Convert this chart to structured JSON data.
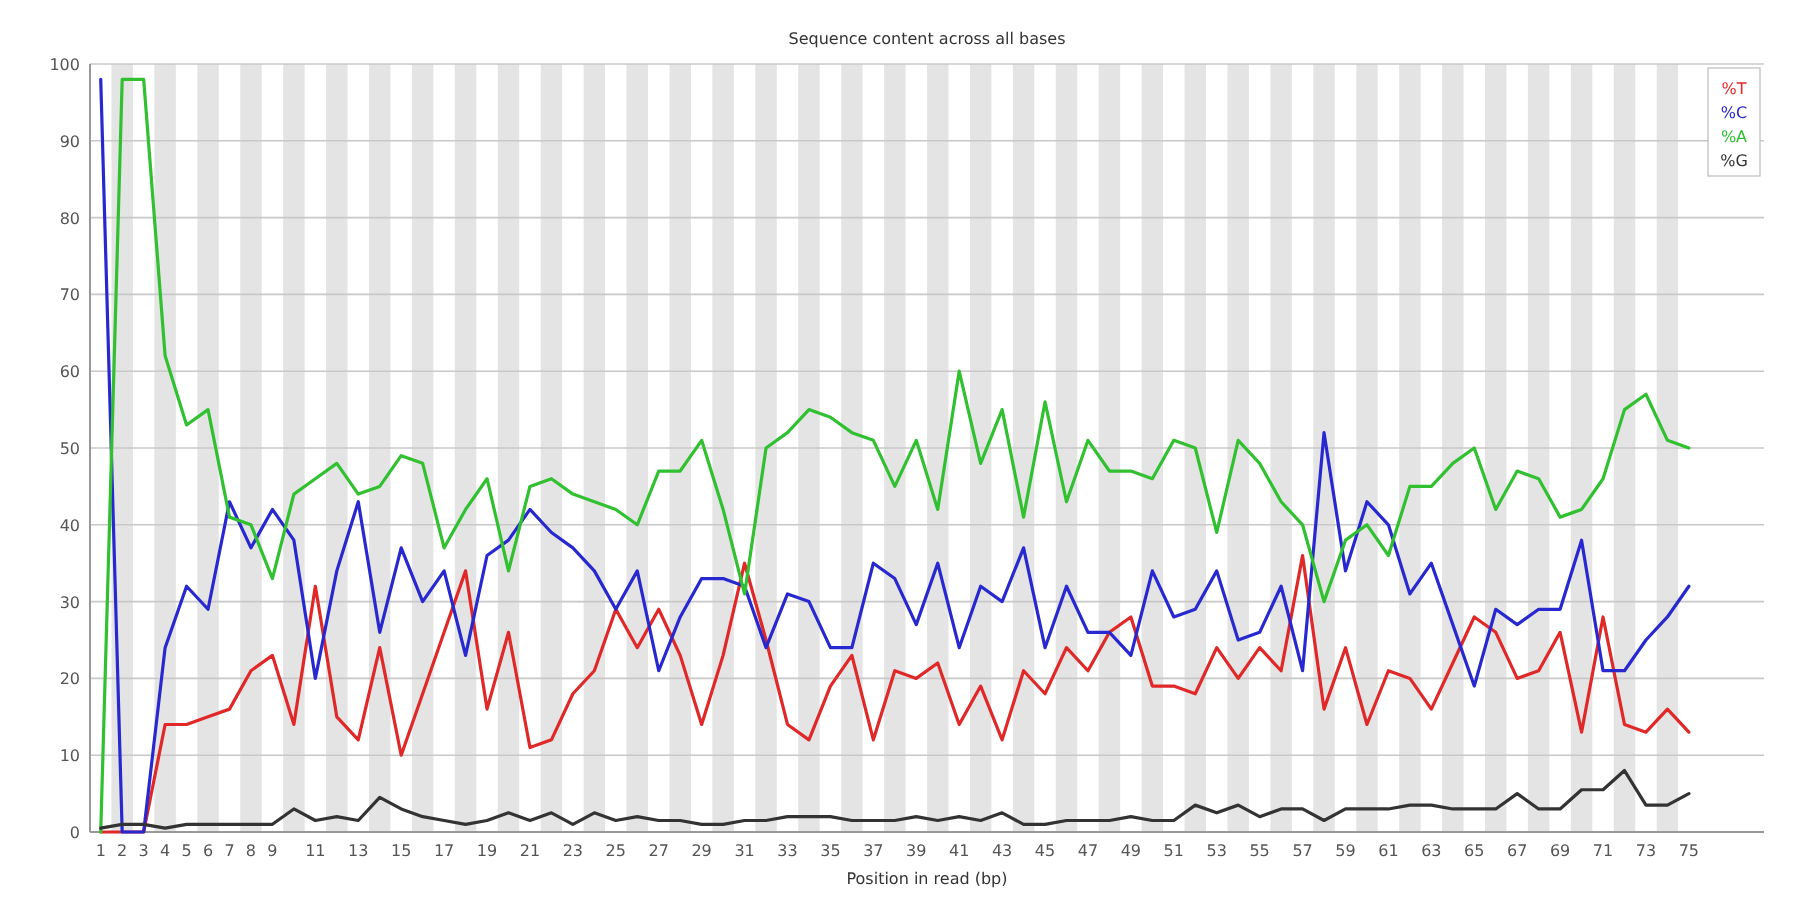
{
  "chart_data": {
    "type": "line",
    "title": "Sequence content across all bases",
    "xlabel": "Position in read (bp)",
    "x": [
      1,
      2,
      3,
      4,
      5,
      6,
      7,
      8,
      9,
      10,
      11,
      12,
      13,
      14,
      15,
      16,
      17,
      18,
      19,
      20,
      21,
      22,
      23,
      24,
      25,
      26,
      27,
      28,
      29,
      30,
      31,
      32,
      33,
      34,
      35,
      36,
      37,
      38,
      39,
      40,
      41,
      42,
      43,
      44,
      45,
      46,
      47,
      48,
      49,
      50,
      51,
      52,
      53,
      54,
      55,
      56,
      57,
      58,
      59,
      60,
      61,
      62,
      63,
      64,
      65,
      66,
      67,
      68,
      69,
      70,
      71,
      72,
      73,
      74,
      75
    ],
    "xlim": [
      0.5,
      78.5
    ],
    "xticks": [
      1,
      2,
      3,
      4,
      5,
      6,
      7,
      8,
      9,
      11,
      13,
      15,
      17,
      19,
      21,
      23,
      25,
      27,
      29,
      31,
      33,
      35,
      37,
      39,
      41,
      43,
      45,
      47,
      49,
      51,
      53,
      55,
      57,
      59,
      61,
      63,
      65,
      67,
      69,
      71,
      73,
      75
    ],
    "ylim": [
      0,
      100
    ],
    "yticks": [
      0,
      10,
      20,
      30,
      40,
      50,
      60,
      70,
      80,
      90,
      100
    ],
    "grid": "y",
    "legend": "top right",
    "bands": [
      {
        "axis": "x",
        "from": 1.5,
        "to": 2.5,
        "color": "#e4e4e4"
      },
      {
        "axis": "x",
        "from": 3.5,
        "to": 4.5,
        "color": "#e4e4e4"
      },
      {
        "axis": "x",
        "from": 5.5,
        "to": 6.5,
        "color": "#e4e4e4"
      },
      {
        "axis": "x",
        "from": 7.5,
        "to": 8.5,
        "color": "#e4e4e4"
      },
      {
        "axis": "x",
        "from": 9.5,
        "to": 10.5,
        "color": "#e4e4e4"
      },
      {
        "axis": "x",
        "from": 11.5,
        "to": 12.5,
        "color": "#e4e4e4"
      },
      {
        "axis": "x",
        "from": 13.5,
        "to": 14.5,
        "color": "#e4e4e4"
      },
      {
        "axis": "x",
        "from": 15.5,
        "to": 16.5,
        "color": "#e4e4e4"
      },
      {
        "axis": "x",
        "from": 17.5,
        "to": 18.5,
        "color": "#e4e4e4"
      },
      {
        "axis": "x",
        "from": 19.5,
        "to": 20.5,
        "color": "#e4e4e4"
      },
      {
        "axis": "x",
        "from": 21.5,
        "to": 22.5,
        "color": "#e4e4e4"
      },
      {
        "axis": "x",
        "from": 23.5,
        "to": 24.5,
        "color": "#e4e4e4"
      },
      {
        "axis": "x",
        "from": 25.5,
        "to": 26.5,
        "color": "#e4e4e4"
      },
      {
        "axis": "x",
        "from": 27.5,
        "to": 28.5,
        "color": "#e4e4e4"
      },
      {
        "axis": "x",
        "from": 29.5,
        "to": 30.5,
        "color": "#e4e4e4"
      },
      {
        "axis": "x",
        "from": 31.5,
        "to": 32.5,
        "color": "#e4e4e4"
      },
      {
        "axis": "x",
        "from": 33.5,
        "to": 34.5,
        "color": "#e4e4e4"
      },
      {
        "axis": "x",
        "from": 35.5,
        "to": 36.5,
        "color": "#e4e4e4"
      },
      {
        "axis": "x",
        "from": 37.5,
        "to": 38.5,
        "color": "#e4e4e4"
      },
      {
        "axis": "x",
        "from": 39.5,
        "to": 40.5,
        "color": "#e4e4e4"
      },
      {
        "axis": "x",
        "from": 41.5,
        "to": 42.5,
        "color": "#e4e4e4"
      },
      {
        "axis": "x",
        "from": 43.5,
        "to": 44.5,
        "color": "#e4e4e4"
      },
      {
        "axis": "x",
        "from": 45.5,
        "to": 46.5,
        "color": "#e4e4e4"
      },
      {
        "axis": "x",
        "from": 47.5,
        "to": 48.5,
        "color": "#e4e4e4"
      },
      {
        "axis": "x",
        "from": 49.5,
        "to": 50.5,
        "color": "#e4e4e4"
      },
      {
        "axis": "x",
        "from": 51.5,
        "to": 52.5,
        "color": "#e4e4e4"
      },
      {
        "axis": "x",
        "from": 53.5,
        "to": 54.5,
        "color": "#e4e4e4"
      },
      {
        "axis": "x",
        "from": 55.5,
        "to": 56.5,
        "color": "#e4e4e4"
      },
      {
        "axis": "x",
        "from": 57.5,
        "to": 58.5,
        "color": "#e4e4e4"
      },
      {
        "axis": "x",
        "from": 59.5,
        "to": 60.5,
        "color": "#e4e4e4"
      },
      {
        "axis": "x",
        "from": 61.5,
        "to": 62.5,
        "color": "#e4e4e4"
      },
      {
        "axis": "x",
        "from": 63.5,
        "to": 64.5,
        "color": "#e4e4e4"
      },
      {
        "axis": "x",
        "from": 65.5,
        "to": 66.5,
        "color": "#e4e4e4"
      },
      {
        "axis": "x",
        "from": 67.5,
        "to": 68.5,
        "color": "#e4e4e4"
      },
      {
        "axis": "x",
        "from": 69.5,
        "to": 70.5,
        "color": "#e4e4e4"
      },
      {
        "axis": "x",
        "from": 71.5,
        "to": 72.5,
        "color": "#e4e4e4"
      },
      {
        "axis": "x",
        "from": 73.5,
        "to": 74.5,
        "color": "#e4e4e4"
      }
    ],
    "series": [
      {
        "name": "%T",
        "color": "#e02828",
        "values": [
          0,
          0,
          0,
          14,
          14,
          15,
          16,
          21,
          23,
          14,
          32,
          15,
          12,
          24,
          10,
          18,
          26,
          34,
          16,
          26,
          11,
          12,
          18,
          21,
          29,
          24,
          29,
          23,
          14,
          23,
          35,
          25,
          14,
          12,
          19,
          23,
          12,
          21,
          20,
          22,
          14,
          19,
          12,
          21,
          18,
          24,
          21,
          26,
          28,
          19,
          19,
          18,
          24,
          20,
          24,
          21,
          36,
          16,
          24,
          14,
          21,
          20,
          16,
          22,
          28,
          26,
          20,
          21,
          26,
          13,
          28,
          14,
          13,
          16,
          13
        ]
      },
      {
        "name": "%C",
        "color": "#2828d0",
        "values": [
          98,
          0,
          0,
          24,
          32,
          29,
          43,
          37,
          42,
          38,
          20,
          34,
          43,
          26,
          37,
          30,
          34,
          23,
          36,
          38,
          42,
          39,
          37,
          34,
          29,
          34,
          21,
          28,
          33,
          33,
          32,
          24,
          31,
          30,
          24,
          24,
          35,
          33,
          27,
          35,
          24,
          32,
          30,
          37,
          24,
          32,
          26,
          26,
          23,
          34,
          28,
          29,
          34,
          25,
          26,
          32,
          21,
          52,
          34,
          43,
          40,
          31,
          35,
          27,
          19,
          29,
          27,
          29,
          29,
          38,
          21,
          21,
          25,
          28,
          32
        ]
      },
      {
        "name": "%A",
        "color": "#30c030",
        "values": [
          0,
          98,
          98,
          62,
          53,
          55,
          41,
          40,
          33,
          44,
          46,
          48,
          44,
          45,
          49,
          48,
          37,
          42,
          46,
          34,
          45,
          46,
          44,
          43,
          42,
          40,
          47,
          47,
          51,
          42,
          31,
          50,
          52,
          55,
          54,
          52,
          51,
          45,
          51,
          42,
          60,
          48,
          55,
          41,
          56,
          43,
          51,
          47,
          47,
          46,
          51,
          50,
          39,
          51,
          48,
          43,
          40,
          30,
          38,
          40,
          36,
          45,
          45,
          48,
          50,
          42,
          47,
          46,
          41,
          42,
          46,
          55,
          57,
          51,
          50
        ]
      },
      {
        "name": "%G",
        "color": "#333333",
        "values": [
          0.5,
          1,
          1,
          0.5,
          1,
          1,
          1,
          1,
          1,
          3,
          1.5,
          2,
          1.5,
          4.5,
          3,
          2,
          1.5,
          1,
          1.5,
          2.5,
          1.5,
          2.5,
          1,
          2.5,
          1.5,
          2,
          1.5,
          1.5,
          1,
          1,
          1.5,
          1.5,
          2,
          2,
          2,
          1.5,
          1.5,
          1.5,
          2,
          1.5,
          2,
          1.5,
          2.5,
          1,
          1,
          1.5,
          1.5,
          1.5,
          2,
          1.5,
          1.5,
          3.5,
          2.5,
          3.5,
          2,
          3,
          3,
          1.5,
          3,
          3,
          3,
          3.5,
          3.5,
          3,
          3,
          3,
          5,
          3,
          3,
          5.5,
          5.5,
          8,
          3.5,
          3.5,
          5
        ]
      }
    ]
  }
}
